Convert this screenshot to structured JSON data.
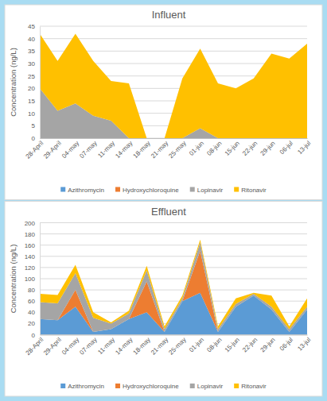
{
  "chart_data": [
    {
      "type": "area",
      "title": "Influent",
      "y_label": "Concentration (ng/L)",
      "categories": [
        "28-April",
        "29-April",
        "04-may",
        "07-may",
        "11-may",
        "14-may",
        "18-may",
        "21-may",
        "25-may",
        "01-jun",
        "08-jun",
        "15-jun",
        "22-jun",
        "29-jun",
        "06-jul",
        "13-jul"
      ],
      "series": [
        {
          "name": "Azithromycin",
          "color": "#5B9BD5",
          "values": [
            0,
            0,
            0,
            0,
            0,
            0,
            0,
            0,
            0,
            0,
            0,
            0,
            0,
            0,
            0,
            0
          ]
        },
        {
          "name": "Hydroxychloroquine",
          "color": "#ED7D31",
          "values": [
            0,
            0,
            0,
            0,
            0,
            0,
            0,
            0,
            0,
            0,
            0,
            0,
            0,
            0,
            0,
            0
          ]
        },
        {
          "name": "Lopinavir",
          "color": "#A5A5A5",
          "values": [
            20,
            11,
            14,
            9,
            7,
            0,
            0,
            0,
            0,
            4,
            0,
            0,
            0,
            0,
            0,
            0
          ]
        },
        {
          "name": "Ritonavir",
          "color": "#FFC000",
          "values": [
            22,
            20,
            28,
            22,
            16,
            22,
            0,
            0,
            24,
            32,
            22,
            20,
            24,
            34,
            32,
            38
          ]
        }
      ],
      "ylim": [
        0,
        45
      ],
      "yticks": [
        0,
        5,
        10,
        15,
        20,
        25,
        30,
        35,
        40,
        45
      ],
      "grid": true,
      "stacked": true,
      "legend": "bottom"
    },
    {
      "type": "area",
      "title": "Effluent",
      "y_label": "Concentration (ng/L)",
      "categories": [
        "28-April",
        "29-April",
        "04-may",
        "07-may",
        "11-may",
        "14-may",
        "18-may",
        "21-may",
        "25-may",
        "01-jun",
        "08-jun",
        "15-jun",
        "22-jun",
        "29-jun",
        "06-jul",
        "13-jul"
      ],
      "series": [
        {
          "name": "Azithromycin",
          "color": "#5B9BD5",
          "values": [
            28,
            26,
            50,
            5,
            10,
            28,
            40,
            5,
            60,
            75,
            5,
            50,
            70,
            45,
            5,
            45
          ]
        },
        {
          "name": "Hydroxychloroquine",
          "color": "#ED7D31",
          "values": [
            0,
            0,
            30,
            0,
            0,
            0,
            55,
            0,
            0,
            75,
            0,
            0,
            0,
            0,
            0,
            0
          ]
        },
        {
          "name": "Lopinavir",
          "color": "#A5A5A5",
          "values": [
            30,
            30,
            30,
            25,
            10,
            10,
            20,
            5,
            5,
            15,
            5,
            5,
            3,
            5,
            5,
            5
          ]
        },
        {
          "name": "Ritonavir",
          "color": "#FFC000",
          "values": [
            15,
            15,
            15,
            10,
            2,
            5,
            8,
            5,
            5,
            5,
            5,
            10,
            2,
            20,
            5,
            15
          ]
        }
      ],
      "ylim": [
        0,
        200
      ],
      "yticks": [
        0,
        20,
        40,
        60,
        80,
        100,
        120,
        140,
        160,
        180,
        200
      ],
      "grid": true,
      "stacked": true,
      "legend": "bottom"
    }
  ]
}
